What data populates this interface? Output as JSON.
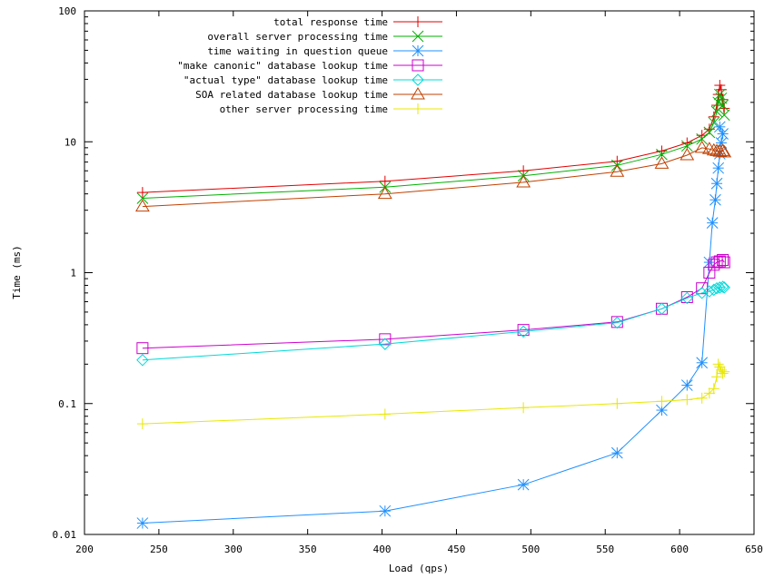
{
  "chart_data": {
    "type": "line",
    "xlabel": "Load (qps)",
    "ylabel": "Time (ms)",
    "xlim": [
      200,
      650
    ],
    "ylim": [
      0.01,
      100
    ],
    "yscale": "log",
    "grid": false,
    "legend_position": "top-right",
    "x_ticks": [
      "200",
      "250",
      "300",
      "350",
      "400",
      "450",
      "500",
      "550",
      "600",
      "650"
    ],
    "y_ticks": [
      "0.01",
      "0.1",
      "1",
      "10",
      "100"
    ],
    "series": [
      {
        "name": "total response time",
        "color": "#e00000",
        "marker": "plus",
        "points": [
          [
            239,
            4.1
          ],
          [
            402,
            5.0
          ],
          [
            495,
            6.0
          ],
          [
            558,
            7.1
          ],
          [
            588,
            8.5
          ],
          [
            605,
            9.8
          ],
          [
            615,
            11.2
          ],
          [
            620,
            12.5
          ],
          [
            623,
            15.5
          ],
          [
            625,
            19.0
          ],
          [
            626,
            23.0
          ],
          [
            627,
            27.0
          ],
          [
            628,
            25.0
          ],
          [
            629,
            21.0
          ],
          [
            630,
            18.0
          ]
        ]
      },
      {
        "name": "overall server processing time",
        "color": "#00b000",
        "marker": "x",
        "points": [
          [
            239,
            3.7
          ],
          [
            402,
            4.5
          ],
          [
            495,
            5.5
          ],
          [
            558,
            6.6
          ],
          [
            588,
            8.0
          ],
          [
            605,
            9.3
          ],
          [
            615,
            10.5
          ],
          [
            620,
            11.8
          ],
          [
            623,
            14.0
          ],
          [
            625,
            17.0
          ],
          [
            626,
            20.0
          ],
          [
            627,
            23.0
          ],
          [
            628,
            21.5
          ],
          [
            629,
            19.0
          ],
          [
            630,
            16.0
          ]
        ]
      },
      {
        "name": "time waiting in question queue",
        "color": "#1e90ff",
        "marker": "star",
        "points": [
          [
            239,
            0.0122
          ],
          [
            402,
            0.0151
          ],
          [
            495,
            0.024
          ],
          [
            558,
            0.042
          ],
          [
            588,
            0.089
          ],
          [
            605,
            0.138
          ],
          [
            615,
            0.205
          ],
          [
            620,
            1.2
          ],
          [
            622,
            2.4
          ],
          [
            624,
            3.6
          ],
          [
            625,
            4.8
          ],
          [
            626,
            6.3
          ],
          [
            627,
            8.1
          ],
          [
            628,
            9.8
          ],
          [
            629,
            11.5
          ],
          [
            627,
            13.0
          ]
        ]
      },
      {
        "name": "\"make canonic\" database lookup time",
        "color": "#cc00cc",
        "marker": "square",
        "points": [
          [
            239,
            0.265
          ],
          [
            402,
            0.31
          ],
          [
            495,
            0.365
          ],
          [
            558,
            0.42
          ],
          [
            588,
            0.53
          ],
          [
            605,
            0.65
          ],
          [
            615,
            0.76
          ],
          [
            620,
            1.0
          ],
          [
            623,
            1.15
          ],
          [
            625,
            1.2
          ],
          [
            627,
            1.22
          ],
          [
            629,
            1.25
          ],
          [
            630,
            1.2
          ]
        ]
      },
      {
        "name": "\"actual type\" database lookup time",
        "color": "#00d8d8",
        "marker": "diamond",
        "points": [
          [
            239,
            0.215
          ],
          [
            402,
            0.285
          ],
          [
            495,
            0.355
          ],
          [
            558,
            0.415
          ],
          [
            588,
            0.53
          ],
          [
            605,
            0.64
          ],
          [
            615,
            0.7
          ],
          [
            620,
            0.72
          ],
          [
            623,
            0.74
          ],
          [
            625,
            0.76
          ],
          [
            627,
            0.77
          ],
          [
            629,
            0.78
          ],
          [
            630,
            0.77
          ]
        ]
      },
      {
        "name": "SOA related database lookup time",
        "color": "#c04000",
        "marker": "triangle",
        "points": [
          [
            239,
            3.2
          ],
          [
            402,
            4.0
          ],
          [
            495,
            4.9
          ],
          [
            558,
            5.9
          ],
          [
            588,
            6.8
          ],
          [
            605,
            7.9
          ],
          [
            615,
            9.0
          ],
          [
            620,
            8.8
          ],
          [
            623,
            8.6
          ],
          [
            625,
            8.5
          ],
          [
            627,
            8.4
          ],
          [
            629,
            8.5
          ],
          [
            630,
            8.3
          ]
        ]
      },
      {
        "name": "other server processing time",
        "color": "#e8e800",
        "marker": "plus",
        "points": [
          [
            239,
            0.07
          ],
          [
            402,
            0.083
          ],
          [
            495,
            0.093
          ],
          [
            558,
            0.1
          ],
          [
            588,
            0.104
          ],
          [
            605,
            0.107
          ],
          [
            615,
            0.11
          ],
          [
            620,
            0.12
          ],
          [
            623,
            0.13
          ],
          [
            625,
            0.16
          ],
          [
            626,
            0.2
          ],
          [
            627,
            0.19
          ],
          [
            628,
            0.18
          ],
          [
            629,
            0.17
          ],
          [
            630,
            0.175
          ]
        ]
      }
    ]
  }
}
